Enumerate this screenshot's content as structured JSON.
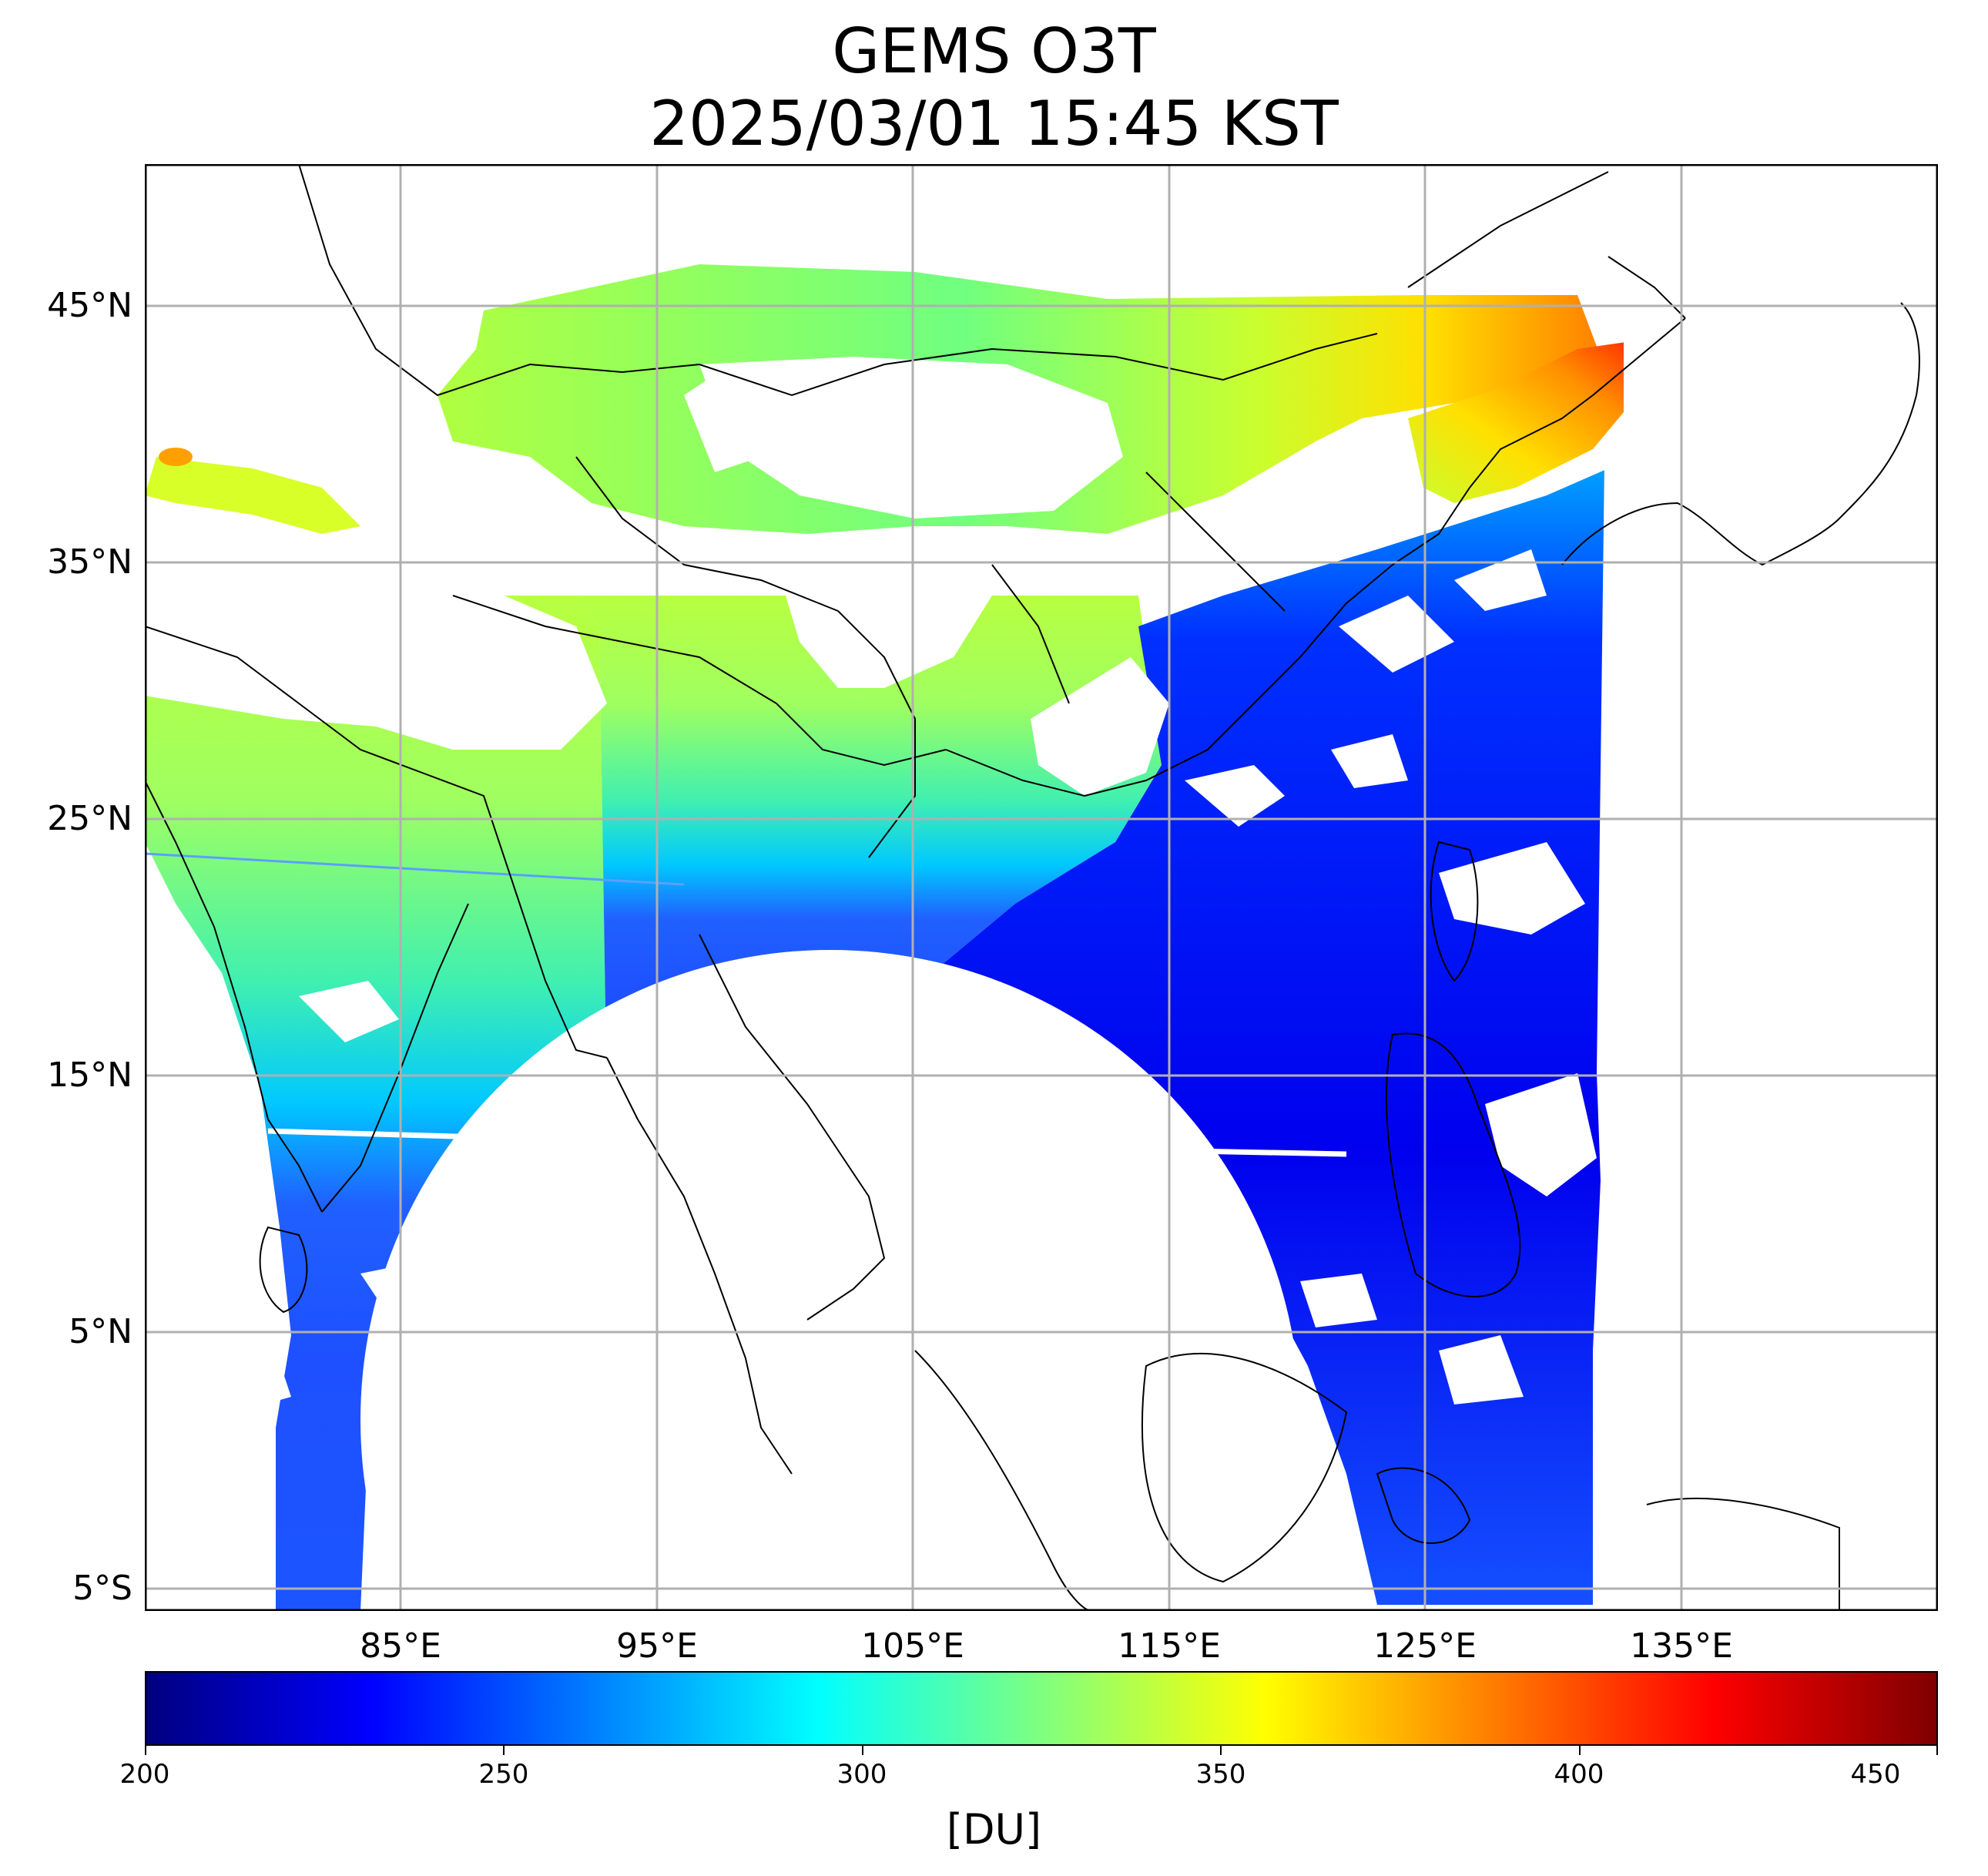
{
  "title": {
    "line1": "GEMS O3T",
    "line2": "2025/03/01 15:45 KST"
  },
  "map": {
    "projection": "PlateCarree",
    "extent_lon": [
      75,
      145
    ],
    "extent_lat": [
      -6,
      50.5
    ],
    "gridlines": true,
    "lat_ticks": [
      {
        "value": 45,
        "label": "45°N"
      },
      {
        "value": 35,
        "label": "35°N"
      },
      {
        "value": 25,
        "label": "25°N"
      },
      {
        "value": 15,
        "label": "15°N"
      },
      {
        "value": 5,
        "label": "5°N"
      },
      {
        "value": -5,
        "label": "5°S"
      }
    ],
    "lon_ticks": [
      {
        "value": 85,
        "label": "85°E"
      },
      {
        "value": 95,
        "label": "95°E"
      },
      {
        "value": 105,
        "label": "105°E"
      },
      {
        "value": 115,
        "label": "115°E"
      },
      {
        "value": 125,
        "label": "125°E"
      },
      {
        "value": 135,
        "label": "135°E"
      }
    ],
    "layer": "Total column ozone (O3T)",
    "colormap": "jet",
    "cloud_masked_areas": "white",
    "colors": {
      "deep_blue": "#0000ee",
      "blue": "#1e50ff",
      "cyan": "#00d4ff",
      "green_cyan": "#30f0b0",
      "yellow_green": "#c8ff30",
      "yellow": "#ffe000",
      "orange": "#ff7800",
      "red": "#ff2000",
      "coastline": "#000000",
      "grid": "#b0b0b0"
    }
  },
  "colorbar": {
    "min": 200,
    "max": 450,
    "ticks": [
      {
        "value": 200,
        "label": "200"
      },
      {
        "value": 250,
        "label": "250"
      },
      {
        "value": 300,
        "label": "300"
      },
      {
        "value": 350,
        "label": "350"
      },
      {
        "value": 400,
        "label": "400"
      },
      {
        "value": 450,
        "label": "450"
      }
    ],
    "label": "[DU]",
    "colormap": "jet"
  }
}
